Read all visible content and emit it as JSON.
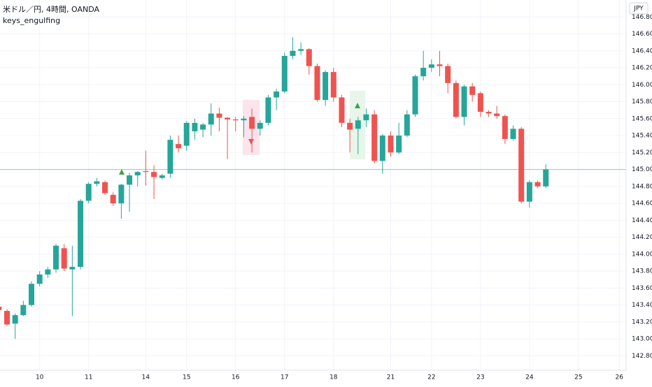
{
  "chart_data": {
    "type": "candlestick",
    "title": "米ドル／円, 4時間, OANDA",
    "indicator": "keys_engulfing",
    "currency": "JPY",
    "up_color": "#26a69a",
    "down_color": "#ef5350",
    "grid": true,
    "ylim": [
      142.63,
      147.0
    ],
    "yticks": [
      {
        "value": 142.8,
        "label": "142.800"
      },
      {
        "value": 143,
        "label": "143.000"
      },
      {
        "value": 143.2,
        "label": "143.200"
      },
      {
        "value": 143.4,
        "label": "143.400"
      },
      {
        "value": 143.6,
        "label": "143.600"
      },
      {
        "value": 143.8,
        "label": "143.800"
      },
      {
        "value": 144,
        "label": "144.000"
      },
      {
        "value": 144.2,
        "label": "144.200"
      },
      {
        "value": 144.4,
        "label": "144.400"
      },
      {
        "value": 144.6,
        "label": "144.600"
      },
      {
        "value": 144.8,
        "label": "144.800"
      },
      {
        "value": 145,
        "label": "145.000"
      },
      {
        "value": 145.2,
        "label": "145.200"
      },
      {
        "value": 145.4,
        "label": "145.400"
      },
      {
        "value": 145.6,
        "label": "145.600"
      },
      {
        "value": 145.8,
        "label": "145.800"
      },
      {
        "value": 146,
        "label": "146.000"
      },
      {
        "value": 146.2,
        "label": "146.200"
      },
      {
        "value": 146.4,
        "label": "146.400"
      },
      {
        "value": 146.6,
        "label": "146.600"
      },
      {
        "value": 146.8,
        "label": "146.800"
      }
    ],
    "categories": [
      null,
      null,
      null,
      null,
      null,
      "10",
      null,
      null,
      null,
      null,
      null,
      "11",
      null,
      null,
      null,
      null,
      null,
      null,
      "14",
      null,
      null,
      null,
      null,
      "15",
      null,
      null,
      null,
      null,
      null,
      "16",
      null,
      null,
      null,
      null,
      null,
      "17",
      null,
      null,
      null,
      null,
      null,
      "18",
      null,
      null,
      null,
      null,
      null,
      null,
      "21",
      null,
      null,
      null,
      null,
      "22",
      null,
      null,
      null,
      null,
      null,
      "23",
      null,
      null,
      null,
      null,
      null,
      "24",
      null,
      null,
      null,
      null,
      null,
      "25",
      null,
      null,
      null,
      null,
      "26"
    ],
    "open": [
      143.38,
      143.33,
      143.18,
      143.28,
      143.4,
      143.65,
      143.76,
      143.82,
      144.07,
      143.82,
      143.85,
      144.63,
      144.83,
      144.85,
      144.7,
      144.6,
      144.82,
      144.93,
      144.98,
      144.97,
      144.9,
      144.95,
      145.3,
      145.28,
      145.45,
      145.47,
      145.53,
      145.66,
      145.61,
      145.59,
      145.58,
      145.62,
      145.48,
      145.55,
      145.85,
      145.92,
      146.34,
      146.4,
      146.42,
      146.22,
      145.82,
      146.15,
      145.85,
      145.55,
      145.48,
      145.58,
      145.65,
      145.1,
      145.4,
      145.2,
      145.4,
      145.65,
      146.1,
      146.2,
      146.24,
      146.22,
      146.02,
      145.62,
      145.98,
      145.9,
      145.68,
      145.66,
      145.63,
      145.36,
      145.48,
      144.62,
      144.85,
      144.8,
      null,
      null,
      null,
      null,
      null,
      null,
      null,
      null,
      null
    ],
    "high": [
      143.4,
      143.35,
      143.3,
      143.45,
      143.68,
      143.8,
      143.85,
      144.12,
      144.12,
      144.1,
      144.65,
      144.85,
      144.9,
      144.87,
      144.73,
      144.83,
      144.96,
      144.98,
      145.22,
      145.05,
      144.95,
      145.4,
      145.4,
      145.57,
      145.6,
      145.55,
      145.78,
      145.73,
      145.62,
      145.62,
      145.63,
      145.72,
      145.58,
      145.88,
      145.95,
      146.38,
      146.56,
      146.5,
      146.43,
      146.25,
      146.17,
      146.2,
      145.88,
      145.6,
      145.62,
      145.72,
      145.7,
      145.42,
      145.45,
      145.55,
      145.7,
      146.12,
      146.4,
      146.3,
      146.4,
      146.25,
      146.05,
      146.0,
      146.02,
      145.92,
      145.7,
      145.75,
      145.65,
      145.52,
      145.5,
      144.87,
      144.87,
      145.06,
      null,
      null,
      null,
      null,
      null,
      null,
      null,
      null,
      null
    ],
    "low": [
      143.3,
      143.15,
      143.0,
      143.27,
      143.38,
      143.62,
      143.72,
      143.78,
      143.8,
      143.27,
      143.82,
      144.6,
      144.8,
      144.7,
      144.57,
      144.42,
      144.5,
      144.8,
      144.81,
      144.65,
      144.88,
      144.9,
      145.2,
      145.22,
      145.35,
      145.38,
      145.4,
      145.45,
      145.12,
      145.45,
      145.38,
      145.2,
      145.4,
      145.52,
      145.7,
      145.9,
      146.3,
      146.35,
      146.12,
      145.8,
      145.75,
      145.8,
      145.5,
      145.2,
      145.18,
      145.5,
      145.07,
      144.95,
      145.15,
      145.18,
      145.38,
      145.62,
      146.05,
      146.15,
      146.1,
      145.9,
      145.6,
      145.52,
      145.8,
      145.62,
      145.62,
      145.6,
      145.3,
      145.34,
      144.6,
      144.55,
      144.78,
      144.78,
      null,
      null,
      null,
      null,
      null,
      null,
      null,
      null,
      null
    ],
    "close": [
      143.34,
      143.17,
      143.28,
      143.4,
      143.65,
      143.76,
      143.82,
      144.1,
      143.83,
      143.85,
      144.63,
      144.83,
      144.86,
      144.72,
      144.6,
      144.82,
      144.93,
      144.97,
      144.97,
      144.91,
      144.93,
      145.35,
      145.25,
      145.55,
      145.55,
      145.53,
      145.66,
      145.61,
      145.59,
      145.58,
      145.6,
      145.48,
      145.55,
      145.85,
      145.92,
      146.34,
      146.4,
      146.42,
      146.22,
      145.82,
      146.15,
      145.85,
      145.55,
      145.47,
      145.58,
      145.65,
      145.1,
      145.4,
      145.2,
      145.4,
      145.65,
      146.1,
      146.2,
      146.24,
      146.22,
      146.02,
      145.62,
      145.98,
      145.88,
      145.68,
      145.66,
      145.63,
      145.36,
      145.48,
      144.62,
      144.85,
      144.8,
      145.0,
      null,
      null,
      null,
      null,
      null,
      null,
      null,
      null,
      null
    ]
  }
}
